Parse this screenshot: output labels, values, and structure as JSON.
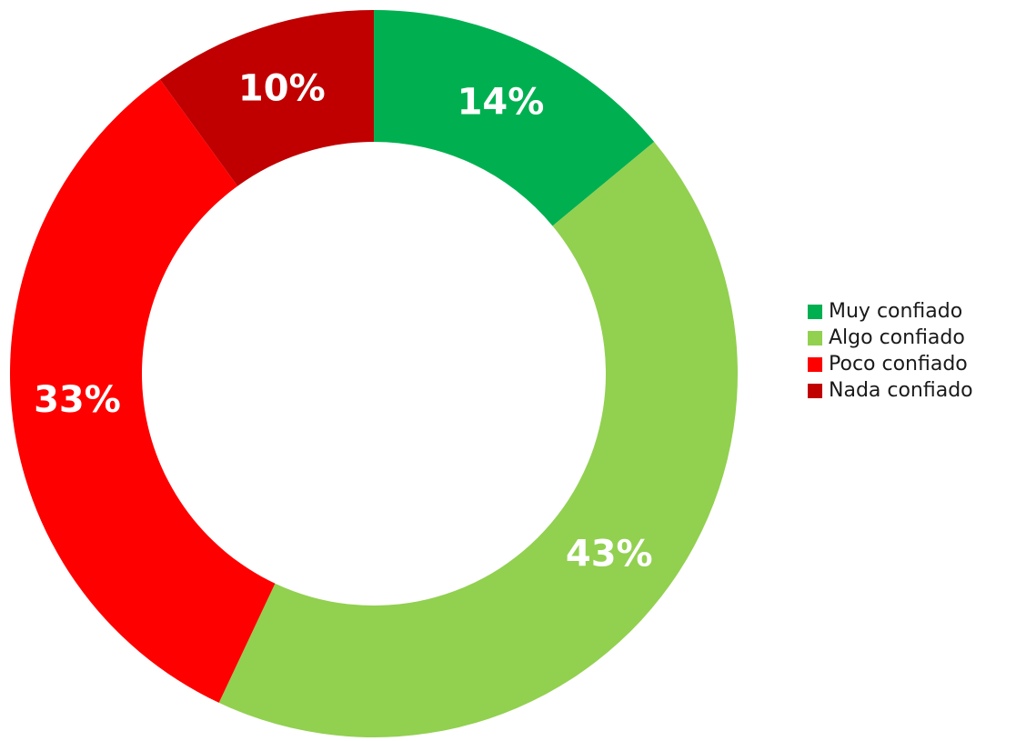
{
  "chart_data": {
    "type": "donut",
    "categories": [
      "Muy confiado",
      "Algo confiado",
      "Poco confiado",
      "Nada confiado"
    ],
    "values": [
      14,
      43,
      33,
      10
    ],
    "value_labels": [
      "14%",
      "43%",
      "33%",
      "10%"
    ],
    "colors": [
      "#00b050",
      "#92d050",
      "#ff0000",
      "#c00000"
    ],
    "legend": "right"
  }
}
